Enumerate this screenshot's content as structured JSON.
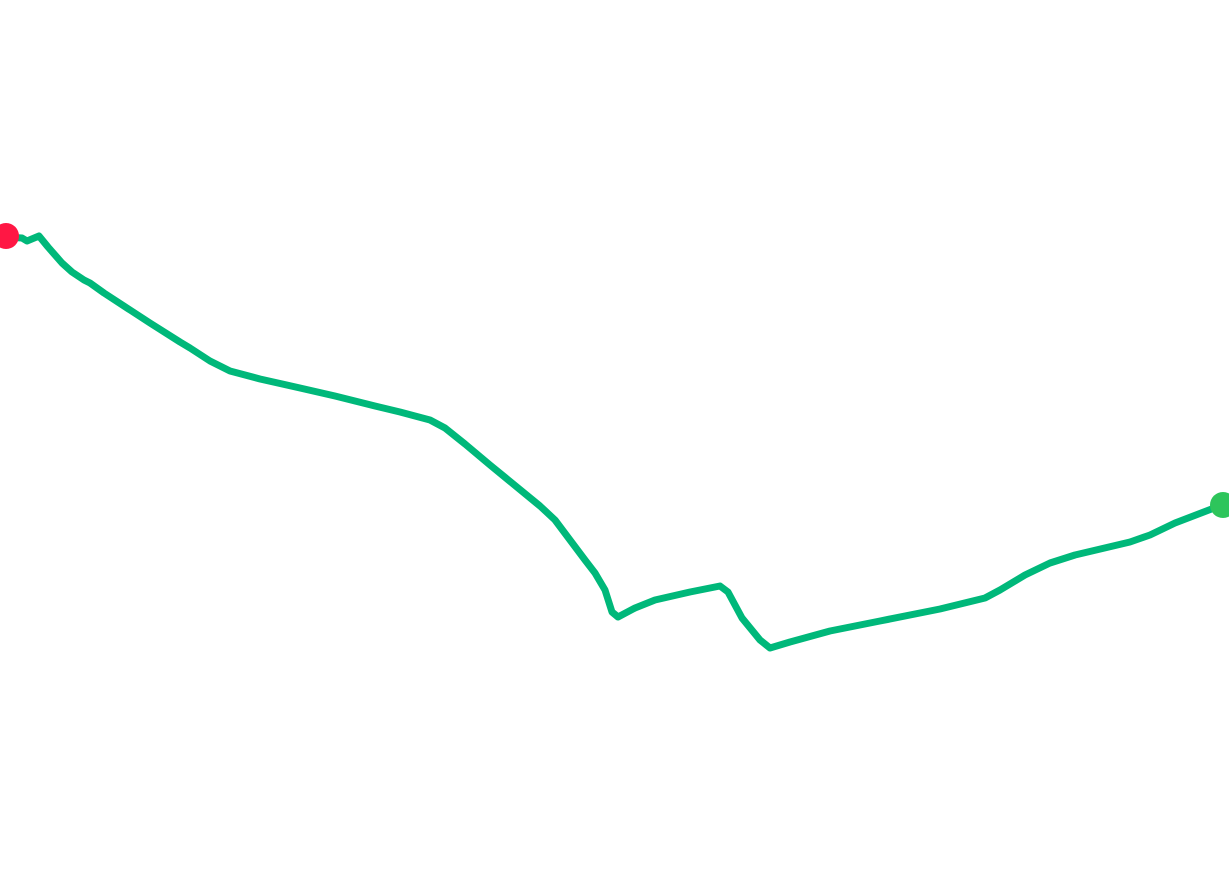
{
  "map": {
    "background_color": "#ffffff",
    "route": {
      "color": "#00b87a"
    },
    "start_marker": {
      "icon": "start-point-marker",
      "color": "#ff1744"
    },
    "end_marker": {
      "icon": "end-point-marker",
      "color": "#2ec55b"
    }
  }
}
